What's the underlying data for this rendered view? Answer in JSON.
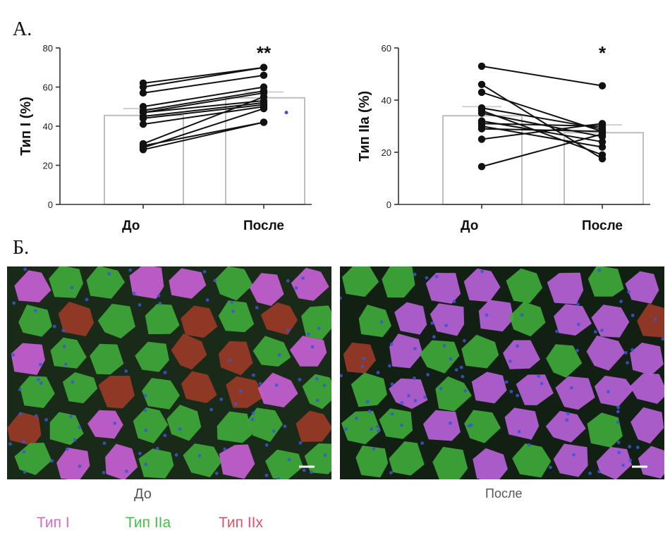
{
  "labels": {
    "panel_a": "А.",
    "panel_b": "Б.",
    "caption_before": "До",
    "caption_after": "После"
  },
  "legend": [
    {
      "label": "Тип   I",
      "color": "#d56bc4"
    },
    {
      "label": "Тип IIa",
      "color": "#44c04a"
    },
    {
      "label": "Тип IIx",
      "color": "#e0506a"
    }
  ],
  "colors": {
    "axis": "#333333",
    "bar_stroke": "#bdbdbd",
    "line": "#111111",
    "mean_marker": "#cfcfcf",
    "blue_dot": "#3a56d6"
  },
  "chart_data": [
    {
      "type": "bar",
      "categories": [
        "До",
        "После"
      ],
      "values": [
        45.5,
        54.5
      ],
      "ylabel": "Тип I (%)",
      "ylim": [
        0,
        80
      ],
      "yticks": [
        0,
        20,
        40,
        60,
        80
      ],
      "significance": "**",
      "paired_points": [
        [
          28,
          42
        ],
        [
          29,
          49
        ],
        [
          30,
          42
        ],
        [
          31,
          55
        ],
        [
          41,
          50
        ],
        [
          44,
          51
        ],
        [
          45,
          52
        ],
        [
          47,
          57
        ],
        [
          47,
          53
        ],
        [
          48,
          58
        ],
        [
          50,
          60
        ],
        [
          57,
          66
        ],
        [
          60,
          70
        ],
        [
          62,
          70
        ]
      ],
      "extra_points": [
        {
          "category": "После",
          "value": 47
        }
      ]
    },
    {
      "type": "bar",
      "categories": [
        "До",
        "После"
      ],
      "values": [
        34,
        27.5
      ],
      "ylabel": "Тип IIa (%)",
      "ylim": [
        0,
        60
      ],
      "yticks": [
        0,
        20,
        40,
        60
      ],
      "significance": "*",
      "paired_points": [
        [
          14.5,
          27
        ],
        [
          25,
          31
        ],
        [
          29,
          28
        ],
        [
          30,
          22
        ],
        [
          31,
          30
        ],
        [
          32,
          24
        ],
        [
          35,
          26
        ],
        [
          37,
          29
        ],
        [
          36,
          19
        ],
        [
          43,
          28
        ],
        [
          46,
          17.5
        ],
        [
          53,
          45.5
        ]
      ]
    }
  ],
  "micrographs": [
    {
      "name": "before",
      "colors": {
        "type1": "#c65fd4",
        "type2a": "#3fa83a",
        "type2x": "#9a3a28",
        "background": "#1a2a18",
        "nuclei": "#3a56d6"
      }
    },
    {
      "name": "after",
      "colors": {
        "type1": "#b661d8",
        "type2a": "#3fa83a",
        "type2x": "#9a3a28",
        "background": "#122014",
        "nuclei": "#3a56d6"
      }
    }
  ]
}
